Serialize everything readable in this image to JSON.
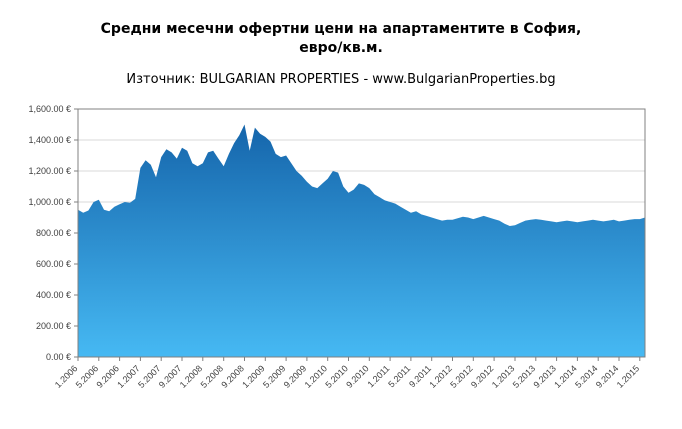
{
  "title_line1": "Средни месечни офертни цени на апартаментите в София,",
  "title_line2": "евро/кв.м.",
  "subtitle": "Източник: BULGARIAN PROPERTIES - www.BulgarianProperties.bg",
  "chart_data": {
    "type": "area",
    "title": "Средни месечни офертни цени на апартаментите в София, евро/кв.м.",
    "source": "Източник: BULGARIAN PROPERTIES - www.BulgarianProperties.bg",
    "xlabel": "",
    "ylabel": "евро/кв.м.",
    "ylim": [
      0,
      1600
    ],
    "grid": "horizontal",
    "legend": "none",
    "x_start": "1.2006",
    "x_end": "2.2015",
    "x_frequency": "monthly",
    "values": [
      950,
      930,
      945,
      1000,
      1015,
      950,
      940,
      970,
      985,
      1000,
      995,
      1020,
      1220,
      1270,
      1240,
      1160,
      1290,
      1340,
      1320,
      1280,
      1350,
      1330,
      1250,
      1230,
      1250,
      1320,
      1330,
      1280,
      1230,
      1310,
      1380,
      1430,
      1500,
      1330,
      1480,
      1440,
      1420,
      1390,
      1310,
      1290,
      1300,
      1250,
      1200,
      1170,
      1130,
      1100,
      1090,
      1120,
      1150,
      1200,
      1190,
      1100,
      1060,
      1080,
      1120,
      1110,
      1090,
      1050,
      1030,
      1010,
      1000,
      990,
      970,
      950,
      930,
      940,
      920,
      910,
      900,
      890,
      880,
      885,
      885,
      895,
      905,
      900,
      890,
      900,
      910,
      900,
      890,
      880,
      860,
      845,
      850,
      865,
      880,
      885,
      890,
      885,
      880,
      875,
      870,
      875,
      880,
      875,
      870,
      875,
      880,
      885,
      880,
      875,
      880,
      885,
      875,
      880,
      885,
      890,
      890,
      900
    ],
    "y_ticks": [
      {
        "value": 0,
        "label": "0.00 €"
      },
      {
        "value": 200,
        "label": "200.00 €"
      },
      {
        "value": 400,
        "label": "400.00 €"
      },
      {
        "value": 600,
        "label": "600.00 €"
      },
      {
        "value": 800,
        "label": "800.00 €"
      },
      {
        "value": 1000,
        "label": "1,000.00 €"
      },
      {
        "value": 1200,
        "label": "1,200.00 €"
      },
      {
        "value": 1400,
        "label": "1,400.00 €"
      },
      {
        "value": 1600,
        "label": "1,600.00 €"
      }
    ],
    "x_ticks": [
      {
        "i": 0,
        "label": "1.2006"
      },
      {
        "i": 4,
        "label": "5.2006"
      },
      {
        "i": 8,
        "label": "9.2006"
      },
      {
        "i": 12,
        "label": "1.2007"
      },
      {
        "i": 16,
        "label": "5.2007"
      },
      {
        "i": 20,
        "label": "9.2007"
      },
      {
        "i": 24,
        "label": "1.2008"
      },
      {
        "i": 28,
        "label": "5.2008"
      },
      {
        "i": 32,
        "label": "9.2008"
      },
      {
        "i": 36,
        "label": "1.2009"
      },
      {
        "i": 40,
        "label": "5.2009"
      },
      {
        "i": 44,
        "label": "9.2009"
      },
      {
        "i": 48,
        "label": "1.2010"
      },
      {
        "i": 52,
        "label": "5.2010"
      },
      {
        "i": 56,
        "label": "9.2010"
      },
      {
        "i": 60,
        "label": "1.2011"
      },
      {
        "i": 64,
        "label": "5.2011"
      },
      {
        "i": 68,
        "label": "9.2011"
      },
      {
        "i": 72,
        "label": "1.2012"
      },
      {
        "i": 76,
        "label": "5.2012"
      },
      {
        "i": 80,
        "label": "9.2012"
      },
      {
        "i": 84,
        "label": "1.2013"
      },
      {
        "i": 88,
        "label": "5.2013"
      },
      {
        "i": 92,
        "label": "9.2013"
      },
      {
        "i": 96,
        "label": "1.2014"
      },
      {
        "i": 100,
        "label": "5.2014"
      },
      {
        "i": 104,
        "label": "9.2014"
      },
      {
        "i": 108,
        "label": "1.2015"
      }
    ],
    "colors": {
      "area_top": "#1565ab",
      "area_bottom": "#46b9f3",
      "grid": "#d9d9d9",
      "axis": "#808080",
      "text": "#3f3f3f"
    }
  }
}
